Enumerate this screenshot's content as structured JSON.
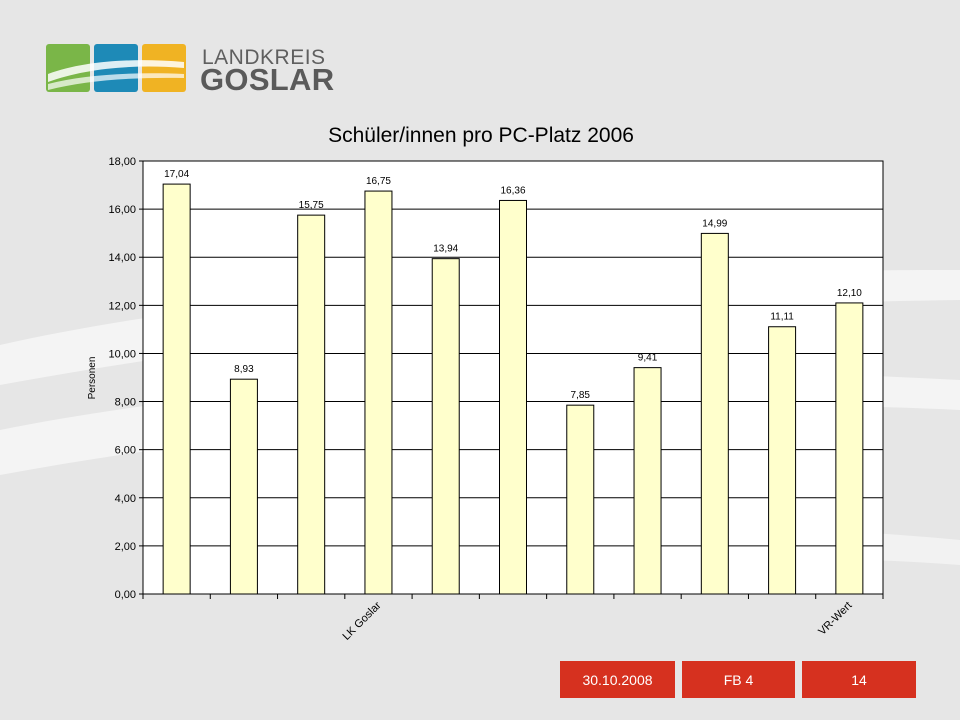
{
  "logo": {
    "line1": "LANDKREIS",
    "line2": "GOSLAR",
    "colors": [
      "#7ab648",
      "#1e8ab7",
      "#f0b323"
    ]
  },
  "footer": {
    "date": "30.10.2008",
    "department": "FB 4",
    "page": "14"
  },
  "chart_data": {
    "type": "bar",
    "title": "Schüler/innen pro PC-Platz 2006",
    "ylabel": "Personen",
    "xlabel": "",
    "ylim": [
      0,
      18
    ],
    "yticks": [
      "0,00",
      "2,00",
      "4,00",
      "6,00",
      "8,00",
      "10,00",
      "12,00",
      "14,00",
      "16,00",
      "18,00"
    ],
    "categories": [
      "",
      "",
      "",
      "LK Goslar",
      "",
      "",
      "",
      "",
      "",
      "",
      "VR-Wert"
    ],
    "values": [
      17.04,
      8.93,
      15.75,
      16.75,
      13.94,
      16.36,
      7.85,
      9.41,
      14.99,
      11.11,
      12.1
    ],
    "labels": [
      "17,04",
      "8,93",
      "15,75",
      "16,75",
      "13,94",
      "16,36",
      "7,85",
      "9,41",
      "14,99",
      "11,11",
      "12,10"
    ],
    "bar_color": "#ffffcc",
    "grid": true,
    "legend": "none"
  }
}
